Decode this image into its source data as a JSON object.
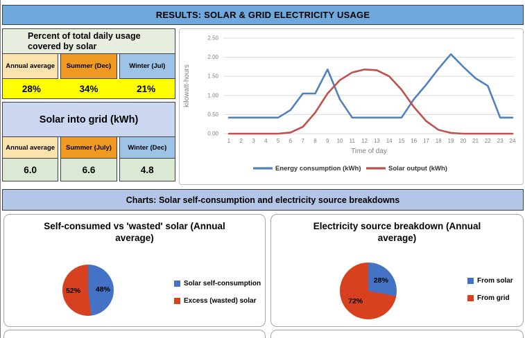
{
  "header": {
    "title": "RESULTS: SOLAR & GRID ELECTRICITY USAGE"
  },
  "band": {
    "title": "Charts: Solar self-consumption and electricity source breakdowns"
  },
  "usage_table": {
    "title": "Percent of total daily usage covered by solar",
    "columns": [
      "Annual average",
      "Summer (Dec)",
      "Winter (Jul)"
    ],
    "values": [
      "28%",
      "34%",
      "21%"
    ]
  },
  "grid_table": {
    "title": "Solar into grid (kWh)",
    "columns": [
      "Annual average",
      "Summer (July)",
      "Winter (Dec)"
    ],
    "values": [
      "6.0",
      "6.6",
      "4.8"
    ]
  },
  "colors": {
    "header_bar": "#6FA8DC",
    "band": "#B4C6E7",
    "table1_header": "#E7EEDF",
    "table2_header": "#CBD6F0",
    "col_annual": "#FBE3AE",
    "col_summer": "#F19A23",
    "col_winter": "#9DC3E6",
    "highlight_yellow": "#FFFF00",
    "values_green": "#DBE8D3"
  },
  "chart_data": [
    {
      "type": "line",
      "title": "",
      "xlabel": "Time of day",
      "ylabel": "kilowatt-hours",
      "x": [
        1,
        2,
        3,
        4,
        5,
        6,
        7,
        8,
        9,
        10,
        11,
        12,
        13,
        14,
        15,
        16,
        17,
        18,
        19,
        20,
        21,
        22,
        23,
        24
      ],
      "ylim": [
        0,
        2.5
      ],
      "yticks": [
        "0.00",
        "0.50",
        "1.00",
        "1.50",
        "2.00",
        "2.50"
      ],
      "grid": true,
      "legend_position": "bottom",
      "series": [
        {
          "name": "Energy consumption (kWh)",
          "color": "#4F81BD",
          "values": [
            0.42,
            0.42,
            0.42,
            0.42,
            0.42,
            0.62,
            1.05,
            1.05,
            1.68,
            0.9,
            0.42,
            0.42,
            0.42,
            0.42,
            0.42,
            0.9,
            1.28,
            1.7,
            2.08,
            1.75,
            1.45,
            1.25,
            0.42,
            0.42
          ]
        },
        {
          "name": "Solar output (kWh)",
          "color": "#C0504D",
          "values": [
            0.0,
            0.0,
            0.0,
            0.0,
            0.0,
            0.03,
            0.18,
            0.55,
            1.05,
            1.4,
            1.6,
            1.68,
            1.66,
            1.5,
            1.15,
            0.7,
            0.33,
            0.1,
            0.02,
            0.0,
            0.0,
            0.0,
            0.0,
            0.0
          ]
        }
      ]
    },
    {
      "type": "pie",
      "title": "Self-consumed vs 'wasted' solar (Annual average)",
      "slices": [
        {
          "label": "Solar self-consumption",
          "value": 48,
          "color": "#4472C4",
          "data_label": "48%"
        },
        {
          "label": "Excess (wasted) solar",
          "value": 52,
          "color": "#D8411F",
          "data_label": "52%"
        }
      ]
    },
    {
      "type": "pie",
      "title": "Electricity source breakdown (Annual average)",
      "slices": [
        {
          "label": "From solar",
          "value": 28,
          "color": "#4472C4",
          "data_label": "28%"
        },
        {
          "label": "From grid",
          "value": 72,
          "color": "#D8411F",
          "data_label": "72%"
        }
      ]
    }
  ]
}
